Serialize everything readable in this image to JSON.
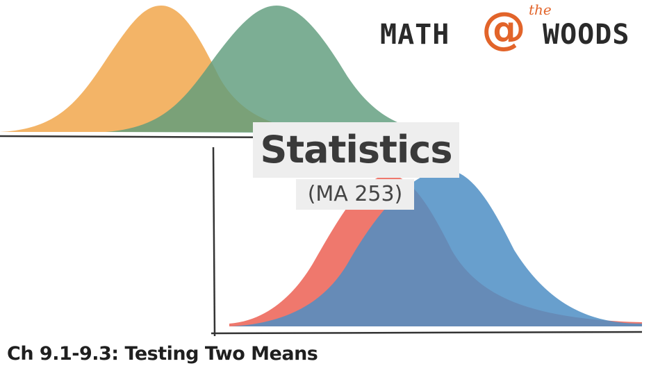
{
  "logo": {
    "left": "MATH",
    "at": "@",
    "the": "the",
    "right": "WOODS"
  },
  "title": "Statistics",
  "subtitle": "(MA 253)",
  "footer": "Ch 9.1-9.3: Testing Two Means",
  "colors": {
    "orange_curve": "#f2b05f",
    "green_curve": "#6aa487",
    "red_curve": "#ef786d",
    "blue_curve": "#5a9fcd",
    "logo_accent": "#e2642a",
    "axis": "#333333"
  }
}
